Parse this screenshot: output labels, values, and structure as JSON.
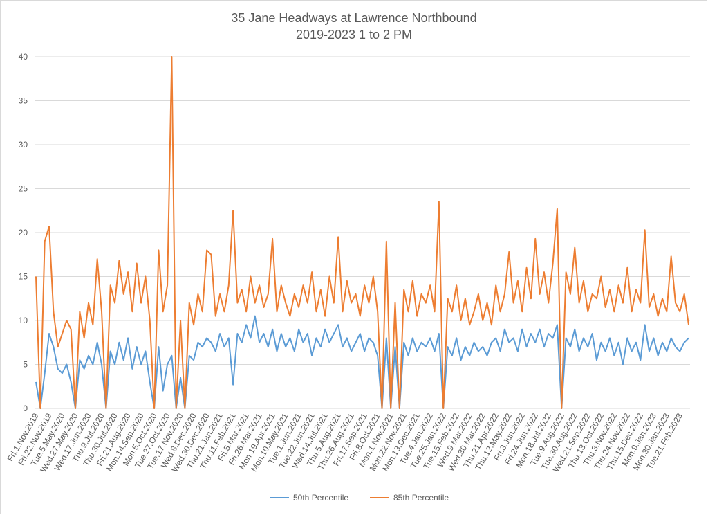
{
  "chart_data": {
    "type": "line",
    "title": "35 Jane Headways at Lawrence Northbound",
    "subtitle": "2019-2023 1 to 2 PM",
    "categories": [
      "Fri.1.Nov.2019",
      null,
      null,
      "Fri.22.Nov.2019",
      null,
      null,
      "Tue.5.May.2020",
      null,
      null,
      "Wed.27.May.2020",
      null,
      null,
      "Wed.17.Jun.2020",
      null,
      null,
      "Thu.9.Jul.2020",
      null,
      null,
      "Thu.30.Jul.2020",
      null,
      null,
      "Fri.21.Aug.2020",
      null,
      null,
      "Mon.14.Sep.2020",
      null,
      null,
      "Mon.5.Oct.2020",
      null,
      null,
      "Tue.27.Oct.2020",
      null,
      null,
      "Tue.17.Nov.2020",
      null,
      null,
      "Wed.8.Dec.2020",
      null,
      null,
      "Wed.30.Dec.2020",
      null,
      null,
      "Thu.21.Jan.2021",
      null,
      null,
      "Thu.11.Feb.2021",
      null,
      null,
      "Fri.5.Mar.2021",
      null,
      null,
      "Fri.26.Mar.2021",
      null,
      null,
      "Mon.19.Apr.2021",
      null,
      null,
      "Mon.10.May.2021",
      null,
      null,
      "Tue.1.Jun.2021",
      null,
      null,
      "Tue.22.Jun.2021",
      null,
      null,
      "Wed.14.Jul.2021",
      null,
      null,
      "Thu.5.Aug.2021",
      null,
      null,
      "Thu.26.Aug.2021",
      null,
      null,
      "Fri.17.Sep.2021",
      null,
      null,
      "Fri.8.Oct.2021",
      null,
      null,
      "Mon.1.Nov.2021",
      null,
      null,
      "Mon.22.Nov.2021",
      null,
      null,
      "Mon.13.Dec.2021",
      null,
      null,
      "Tue.4.Jan.2022",
      null,
      null,
      "Tue.25.Jan.2022",
      null,
      null,
      "Tue.15.Feb.2022",
      null,
      null,
      "Wed.9.Mar.2022",
      null,
      null,
      "Wed.30.Mar.2022",
      null,
      null,
      "Thu.21.Apr.2022",
      null,
      null,
      "Thu.12.May.2022",
      null,
      null,
      "Fri.3.Jun.2022",
      null,
      null,
      "Fri.24.Jun.2022",
      null,
      null,
      "Mon.18.Jul.2022",
      null,
      null,
      "Tue.9.Aug.2022",
      null,
      null,
      "Tue.30.Aug.2022",
      null,
      null,
      "Wed.21.Sep.2022",
      null,
      null,
      "Thu.13.Oct.2022",
      null,
      null,
      "Thu.3.Nov.2022",
      null,
      null,
      "Thu.24.Nov.2022",
      null,
      null,
      "Thu.15.Dec.2022",
      null,
      null,
      "Mon.9.Jan.2023",
      null,
      null,
      "Mon.30.Jan.2023",
      null,
      null,
      "Tue.21.Feb.2023",
      null,
      null
    ],
    "series": [
      {
        "name": "50th Percentile",
        "color": "#5b9bd5",
        "values": [
          3,
          0,
          4,
          8.5,
          7,
          4.5,
          4,
          5,
          3,
          0,
          5.5,
          4.5,
          6,
          5,
          7.5,
          5,
          0,
          6.5,
          5,
          7.5,
          5.5,
          8,
          4.5,
          7,
          5,
          6.5,
          3,
          0,
          7,
          2,
          5,
          6,
          0,
          3.5,
          0,
          6,
          5.5,
          7.5,
          7,
          8,
          7.5,
          6.5,
          8.5,
          7,
          8,
          2.7,
          8.5,
          7.5,
          9.5,
          8,
          10.5,
          7.5,
          8.5,
          7,
          9,
          6.5,
          8.5,
          7,
          8,
          6.5,
          9,
          7.5,
          8.5,
          6,
          8,
          7,
          9,
          7.5,
          8.5,
          9.5,
          7,
          8,
          6.5,
          7.5,
          8.5,
          6.5,
          8,
          7.5,
          6,
          0,
          8,
          0,
          7,
          0,
          7.5,
          6,
          8,
          6.5,
          7.5,
          7,
          8,
          6.5,
          8.5,
          0,
          7,
          6,
          8,
          5.5,
          7,
          6,
          7.5,
          6.5,
          7,
          6,
          7.5,
          8,
          6.5,
          9,
          7.5,
          8,
          6.5,
          9,
          7,
          8.5,
          7.5,
          9,
          7,
          8.5,
          8,
          9.5,
          0,
          8,
          7,
          9,
          6.5,
          8,
          7,
          8.5,
          5.5,
          7.5,
          6.5,
          8,
          6,
          7.5,
          5,
          8,
          6.5,
          7.5,
          5.5,
          9.5,
          6.5,
          8,
          6,
          7.5,
          6.5,
          8,
          7,
          6.5,
          7.5,
          8
        ]
      },
      {
        "name": "85th Percentile",
        "color": "#ed7d31",
        "values": [
          15,
          0,
          19,
          20.7,
          11,
          7,
          8.5,
          10,
          9,
          0,
          11,
          8,
          12,
          9.5,
          17,
          11,
          0,
          14,
          12,
          16.8,
          13,
          15.5,
          11,
          16.5,
          12,
          15,
          10,
          0,
          18,
          11,
          14,
          40,
          0,
          10,
          0,
          12,
          9.5,
          13,
          11,
          18,
          17.5,
          10.5,
          13,
          11,
          14,
          22.5,
          12,
          13.5,
          11,
          15,
          12,
          14,
          11.5,
          13,
          19.3,
          11,
          14,
          12,
          10.5,
          13,
          11.5,
          14,
          12,
          15.5,
          11,
          13.5,
          10.5,
          15,
          12,
          19.5,
          11,
          14.5,
          12,
          13,
          10.5,
          14,
          12,
          15,
          11,
          0,
          19,
          0,
          12,
          0,
          13.5,
          11,
          14.5,
          10.5,
          13,
          12,
          14,
          11,
          23.5,
          0,
          12.5,
          11,
          14,
          10,
          12.5,
          9.5,
          11,
          13,
          10,
          12,
          9.5,
          14,
          11,
          13,
          17.8,
          12,
          14.5,
          11,
          16,
          12.5,
          19.3,
          13,
          15.5,
          12,
          16.5,
          22.7,
          0,
          15.5,
          13,
          18.3,
          12,
          14.5,
          11,
          13,
          12.5,
          15,
          11.5,
          13.5,
          11,
          14,
          12,
          16,
          11,
          13.5,
          12,
          20.3,
          11.5,
          13,
          10.5,
          12.5,
          11,
          17.3,
          12,
          11,
          13,
          9.5
        ]
      }
    ],
    "ylim": [
      0,
      40
    ],
    "yticks": [
      0,
      5,
      10,
      15,
      20,
      25,
      30,
      35,
      40
    ],
    "grid": true,
    "legend": "bottom"
  }
}
